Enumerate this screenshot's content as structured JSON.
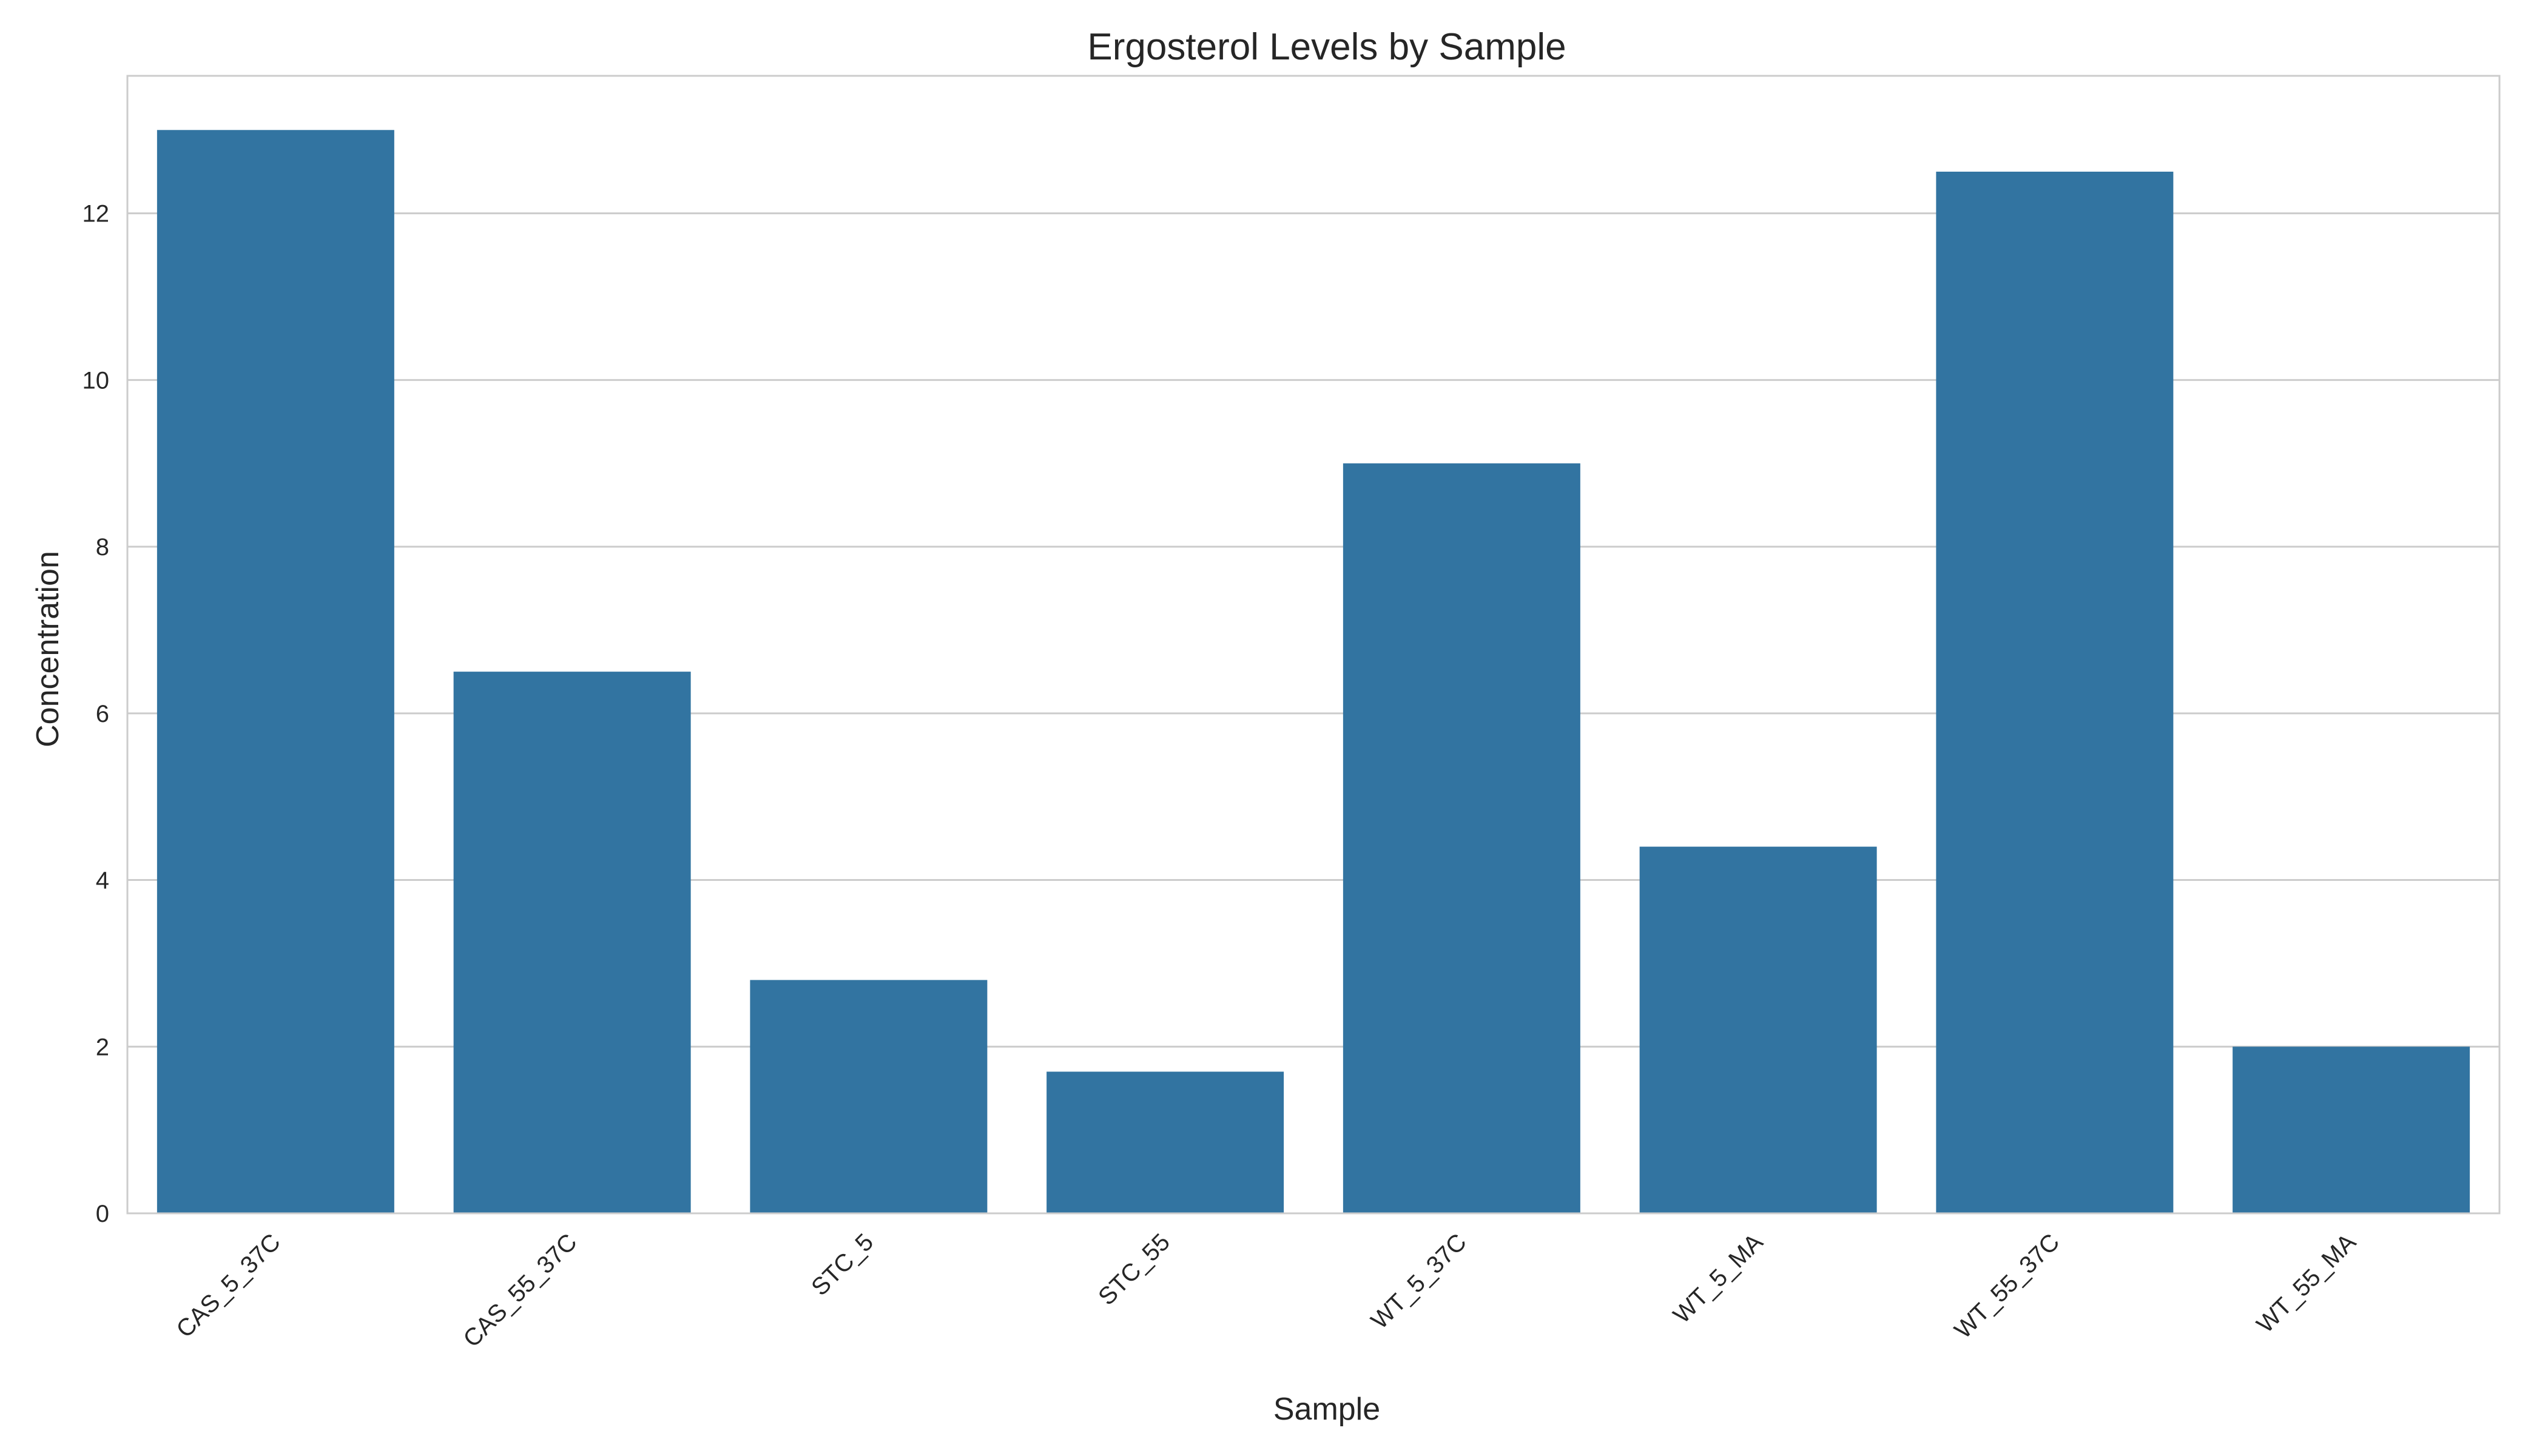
{
  "chart_data": {
    "type": "bar",
    "title": "Ergosterol Levels by Sample",
    "xlabel": "Sample",
    "ylabel": "Concentration",
    "categories": [
      "CAS_5_37C",
      "CAS_55_37C",
      "STC_5",
      "STC_55",
      "WT_5_37C",
      "WT_5_MA",
      "WT_55_37C",
      "WT_55_MA"
    ],
    "values": [
      13.0,
      6.5,
      2.8,
      1.7,
      9.0,
      4.4,
      12.5,
      2.0
    ],
    "ylim": [
      0,
      13.65
    ],
    "yticks": [
      0,
      2,
      4,
      6,
      8,
      10,
      12
    ],
    "grid": true,
    "legend": "none",
    "colors": {
      "bar": "#3274a1",
      "grid": "#cccccc",
      "frame": "#cccccc"
    }
  }
}
